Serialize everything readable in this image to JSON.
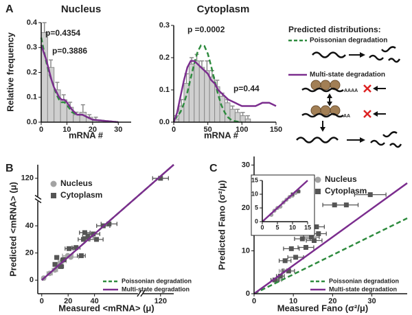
{
  "diagram": {
    "title": "Predicted distributions:",
    "tail_long": "AAAA",
    "tail_short": "AA"
  },
  "chart_data": [
    {
      "type": "histogram",
      "panel": "A",
      "title": "Nucleus",
      "xlabel": "mRNA #",
      "ylabel": "Relative frequency",
      "xlim": [
        0,
        35
      ],
      "ylim": [
        0,
        0.4
      ],
      "xticks": [
        0,
        10,
        20,
        30
      ],
      "yticks": [
        {
          "value": 0,
          "label": "0.0"
        },
        0.1,
        0.2,
        0.3,
        0.4
      ],
      "bins": [
        0,
        2.5,
        5,
        7.5,
        10,
        12.5,
        15,
        17.5,
        20,
        22.5
      ],
      "values": [
        0.36,
        0.22,
        0.13,
        0.09,
        0.06,
        0.03,
        0.04,
        0.02,
        0.01
      ],
      "errors": [
        0.04,
        0.03,
        0.03,
        0.02,
        0.02,
        0.01,
        0.03,
        0.01,
        0.01
      ],
      "color": "#cfcfcf",
      "series": [
        {
          "name": "Poissonian degradation",
          "color": "#2e8b3e",
          "dash": true,
          "x": [
            0,
            1,
            2,
            3,
            4,
            5,
            6,
            7,
            8,
            9,
            10,
            12,
            14,
            16,
            18,
            20,
            25,
            30
          ],
          "values": [
            0.34,
            0.29,
            0.24,
            0.2,
            0.17,
            0.14,
            0.11,
            0.09,
            0.08,
            0.08,
            0.07,
            0.04,
            0.03,
            0.03,
            0.02,
            0.01,
            0.005,
            0
          ]
        },
        {
          "name": "Multi-state degradation",
          "color": "#7b2d8e",
          "x": [
            0,
            1,
            2,
            3,
            4,
            5,
            6,
            7,
            8,
            9,
            10,
            12,
            14,
            16,
            18,
            20,
            25,
            30
          ],
          "values": [
            0.31,
            0.28,
            0.25,
            0.21,
            0.17,
            0.14,
            0.12,
            0.1,
            0.09,
            0.09,
            0.08,
            0.05,
            0.03,
            0.03,
            0.02,
            0.01,
            0.005,
            0
          ]
        }
      ],
      "annotations": [
        {
          "text": "p=0.4354",
          "color": "#2e8b3e"
        },
        {
          "text": "p=0.3886",
          "color": "#7b2d8e"
        }
      ]
    },
    {
      "type": "histogram",
      "title": "Cytoplasm",
      "xlabel": "mRNA #",
      "xlim": [
        0,
        150
      ],
      "ylim": [
        0,
        0.3
      ],
      "xticks": [
        0,
        50,
        100,
        150
      ],
      "yticks": [
        {
          "value": 0,
          "label": "0.0"
        },
        0.1,
        0.2,
        0.3
      ],
      "bins": [
        0,
        7.5,
        15,
        22.5,
        30,
        37.5,
        45,
        52.5,
        60,
        67.5,
        75,
        82.5,
        90,
        97.5,
        105,
        112.5
      ],
      "values": [
        0.01,
        0.05,
        0.12,
        0.18,
        0.19,
        0.17,
        0.16,
        0.14,
        0.11,
        0.08,
        0.06,
        0.04,
        0.03,
        0.02,
        0.01
      ],
      "errors": [
        0.01,
        0.02,
        0.03,
        0.02,
        0.02,
        0.02,
        0.03,
        0.02,
        0.02,
        0.01,
        0.01,
        0.01,
        0.01,
        0.01,
        0.01
      ],
      "color": "#cfcfcf",
      "series": [
        {
          "color": "#2e8b3e",
          "dash": true,
          "x": [
            0,
            5,
            10,
            15,
            20,
            25,
            30,
            35,
            40,
            45,
            50,
            55,
            60,
            65,
            70,
            75,
            80,
            85,
            90,
            95,
            100
          ],
          "values": [
            0.008,
            0.017,
            0.032,
            0.058,
            0.093,
            0.137,
            0.181,
            0.218,
            0.238,
            0.236,
            0.212,
            0.173,
            0.128,
            0.086,
            0.052,
            0.029,
            0.014,
            0.006,
            0.003,
            0.001,
            0
          ]
        },
        {
          "color": "#7b2d8e",
          "x": [
            0,
            5,
            10,
            15,
            20,
            25,
            30,
            35,
            40,
            45,
            50,
            55,
            60,
            65,
            70,
            75,
            80,
            85,
            90,
            95,
            100,
            110,
            120,
            130,
            140,
            150
          ],
          "values": [
            0,
            0.03,
            0.08,
            0.13,
            0.17,
            0.19,
            0.19,
            0.18,
            0.17,
            0.16,
            0.15,
            0.13,
            0.12,
            0.1,
            0.09,
            0.08,
            0.07,
            0.065,
            0.06,
            0.055,
            0.05,
            0.05,
            0.05,
            0.06,
            0.06,
            0.05
          ]
        }
      ],
      "annotations": [
        {
          "text": "p =0.0002",
          "color": "#2e8b3e"
        },
        {
          "text": "p=0.44",
          "color": "#7b2d8e"
        }
      ]
    },
    {
      "type": "scatter",
      "panel": "B",
      "xlabel": "Measured <mRNA> (μ)",
      "ylabel": "Predicted <mRNA> (μ)",
      "xlim": [
        -3,
        130
      ],
      "ylim": [
        -10,
        130
      ],
      "xbreak": [
        75,
        105
      ],
      "ybreak": [
        60,
        105
      ],
      "xticks": [
        0,
        20,
        40,
        120
      ],
      "yticks": [
        0,
        20,
        40,
        120
      ],
      "series": [
        {
          "name": "Nucleus",
          "color": "#a3a3a3",
          "marker": "circle",
          "x": [
            1.5,
            6,
            10,
            13,
            15.5,
            19.7,
            22
          ],
          "values": [
            1.5,
            5,
            7.5,
            11.6,
            14,
            18,
            17
          ],
          "xerr": [
            1,
            2,
            2,
            3,
            3,
            4,
            6
          ]
        },
        {
          "name": "Cytoplasm",
          "color": "#555555",
          "marker": "square",
          "x": [
            10,
            11.4,
            14.5,
            16.5,
            20.7,
            26,
            30,
            31.6,
            32.6,
            35,
            39,
            41.5,
            46.6,
            51,
            120
          ],
          "values": [
            11.6,
            16.7,
            10,
            15,
            23.2,
            24,
            18,
            30,
            35,
            32,
            34,
            30,
            40,
            41.4,
            120
          ],
          "xerr": [
            1,
            1.5,
            2,
            2,
            3,
            3,
            3,
            4,
            4,
            4,
            5,
            5,
            5,
            6,
            6
          ]
        },
        {
          "name": "Poissonian degradation",
          "color": "#2e8b3e",
          "dash": true,
          "x": [
            0,
            130
          ],
          "values": [
            0,
            130
          ]
        },
        {
          "name": "Multi-state degradation",
          "color": "#7b2d8e",
          "x": [
            0,
            130
          ],
          "values": [
            0,
            130
          ]
        }
      ]
    },
    {
      "type": "scatter",
      "panel": "C",
      "xlabel": "Measured Fano (σ²/μ)",
      "ylabel": "Predicted Fano  (σ²/μ)",
      "xlim": [
        0,
        39
      ],
      "ylim": [
        0,
        32
      ],
      "xticks": [
        0,
        10,
        20,
        30
      ],
      "yticks": [
        0,
        10,
        20,
        30
      ],
      "series": [
        {
          "name": "Nucleus",
          "color": "#a3a3a3",
          "marker": "circle",
          "x": [
            6,
            7.4
          ],
          "values": [
            3.2,
            5.3
          ],
          "xerr": [
            1,
            1
          ]
        },
        {
          "name": "Cytoplasm",
          "color": "#555555",
          "marker": "square",
          "x": [
            5.3,
            6.7,
            7.9,
            8.8,
            9.5,
            10.6,
            12.3,
            13.2,
            14.6,
            15.3,
            15.9,
            16.4,
            20.5,
            23.5,
            29.6
          ],
          "values": [
            3.2,
            4.1,
            7.7,
            5.3,
            10.5,
            8.5,
            12.8,
            10.8,
            13.2,
            12.4,
            15.6,
            14,
            20.7,
            20.7,
            23.1
          ],
          "xerr": [
            1,
            1,
            1.5,
            1.5,
            2,
            2,
            2,
            2,
            2,
            2,
            2,
            2,
            3,
            3,
            4
          ]
        },
        {
          "name": "Poissonian degradation",
          "color": "#2e8b3e",
          "dash": true,
          "x": [
            0,
            39
          ],
          "values": [
            0,
            17.6
          ]
        },
        {
          "name": "Multi-state degradation",
          "color": "#7b2d8e",
          "x": [
            0,
            39
          ],
          "values": [
            0,
            25.8
          ]
        }
      ]
    },
    {
      "type": "scatter",
      "xlim": [
        0,
        15
      ],
      "ylim": [
        0,
        15
      ],
      "xticks": [
        0,
        5,
        10,
        15
      ],
      "yticks": [
        0,
        5,
        10,
        15
      ],
      "series": [
        {
          "color": "#a3a3a3",
          "marker": "circle",
          "x": [
            3,
            4,
            5,
            6,
            7,
            8,
            9,
            10,
            11,
            12
          ],
          "values": [
            2.5,
            4,
            5,
            5.5,
            7,
            8,
            9,
            9.5,
            10.5,
            11
          ]
        },
        {
          "color": "#555555",
          "marker": "square",
          "x": [
            10,
            12
          ],
          "values": [
            10,
            11
          ]
        },
        {
          "color": "#7b2d8e",
          "x": [
            0,
            15
          ],
          "values": [
            0,
            15
          ]
        }
      ]
    }
  ]
}
